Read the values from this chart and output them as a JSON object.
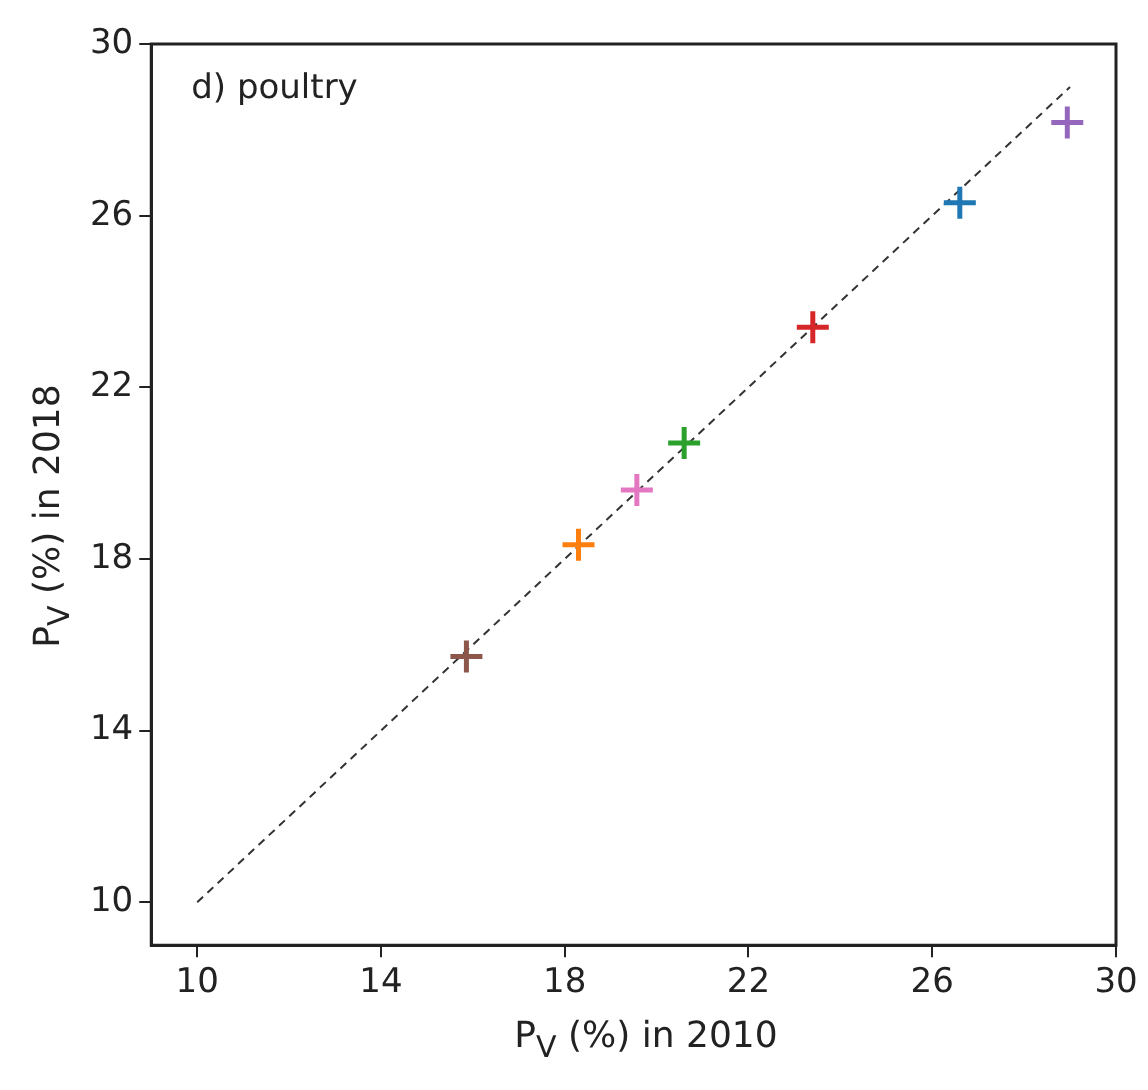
{
  "chart_data": {
    "type": "scatter",
    "xlabel": "P$_{V}$ (%) in 2010",
    "ylabel": "P$_{V}$ (%) in 2018",
    "annotations": [
      "d) poultry"
    ],
    "xlim": [
      9,
      30
    ],
    "xticks": [
      10,
      14,
      18,
      22,
      26,
      30
    ],
    "ylim": [
      9,
      30
    ],
    "yticks": [
      10,
      14,
      18,
      22,
      26,
      30
    ],
    "grid": false,
    "legend": false,
    "series": [
      {
        "type": "scatter",
        "marker": "cross",
        "x": [
          15.86,
          18.3,
          19.57,
          20.6,
          23.4,
          26.6,
          28.94
        ],
        "values": [
          15.73,
          18.33,
          19.61,
          20.7,
          23.4,
          26.3,
          28.17
        ],
        "colors": [
          "#8c564b",
          "#ff7f0e",
          "#e377c2",
          "#2ca02c",
          "#d62728",
          "#1f77b4",
          "#9467bd"
        ]
      },
      {
        "type": "line",
        "x": [
          10,
          29
        ],
        "values": [
          10,
          29
        ],
        "color": "#333333",
        "line_style": "dashed",
        "marker": "none"
      }
    ]
  }
}
